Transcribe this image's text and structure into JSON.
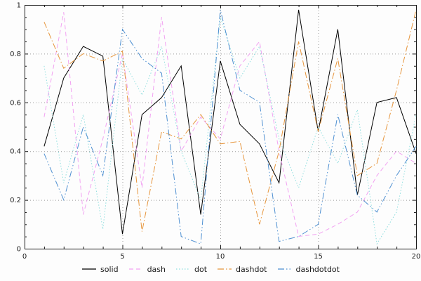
{
  "chart_data": {
    "type": "line",
    "title": "",
    "xlabel": "",
    "ylabel": "",
    "xlim": [
      0,
      20
    ],
    "ylim": [
      0,
      1
    ],
    "xticks": [
      0,
      5,
      10,
      15,
      20
    ],
    "yticks": [
      0,
      0.2,
      0.4,
      0.6,
      0.8,
      1
    ],
    "xtick_labels": [
      "0",
      "5",
      "10",
      "15",
      "20"
    ],
    "ytick_labels": [
      "0",
      "0.2",
      "0.4",
      "0.6",
      "0.8",
      "1"
    ],
    "grid": true,
    "legend_position": "bottom",
    "x": [
      1,
      2,
      3,
      4,
      5,
      6,
      7,
      8,
      9,
      10,
      11,
      12,
      13,
      14,
      15,
      16,
      17,
      18,
      19,
      20
    ],
    "series": [
      {
        "name": "solid",
        "color": "#000000",
        "dash": "solid",
        "values": [
          0.42,
          0.7,
          0.83,
          0.79,
          0.06,
          0.55,
          0.62,
          0.75,
          0.14,
          0.77,
          0.51,
          0.43,
          0.27,
          0.98,
          0.48,
          0.9,
          0.22,
          0.6,
          0.62,
          0.39
        ]
      },
      {
        "name": "dash",
        "color": "#f2a2f2",
        "dash": "dash",
        "values": [
          0.54,
          0.97,
          0.14,
          0.45,
          0.8,
          0.25,
          0.95,
          0.4,
          0.54,
          0.45,
          0.75,
          0.85,
          0.4,
          0.05,
          0.06,
          0.1,
          0.15,
          0.3,
          0.4,
          0.35
        ]
      },
      {
        "name": "dot",
        "color": "#8fdede",
        "dash": "dot",
        "values": [
          0.75,
          0.27,
          0.55,
          0.08,
          0.78,
          0.63,
          0.83,
          0.4,
          0.2,
          0.95,
          0.7,
          0.83,
          0.45,
          0.25,
          0.5,
          0.35,
          0.57,
          0.02,
          0.15,
          0.55
        ]
      },
      {
        "name": "dashdot",
        "color": "#e6953c",
        "dash": "dashdot",
        "values": [
          0.93,
          0.74,
          0.8,
          0.77,
          0.81,
          0.07,
          0.48,
          0.45,
          0.55,
          0.43,
          0.44,
          0.1,
          0.4,
          0.85,
          0.48,
          0.78,
          0.3,
          0.35,
          0.65,
          0.98
        ]
      },
      {
        "name": "dashdotdot",
        "color": "#4d8fd1",
        "dash": "dashdotdot",
        "values": [
          0.39,
          0.2,
          0.5,
          0.3,
          0.9,
          0.78,
          0.72,
          0.05,
          0.02,
          0.98,
          0.65,
          0.6,
          0.03,
          0.05,
          0.1,
          0.55,
          0.22,
          0.15,
          0.3,
          0.42
        ]
      }
    ]
  }
}
